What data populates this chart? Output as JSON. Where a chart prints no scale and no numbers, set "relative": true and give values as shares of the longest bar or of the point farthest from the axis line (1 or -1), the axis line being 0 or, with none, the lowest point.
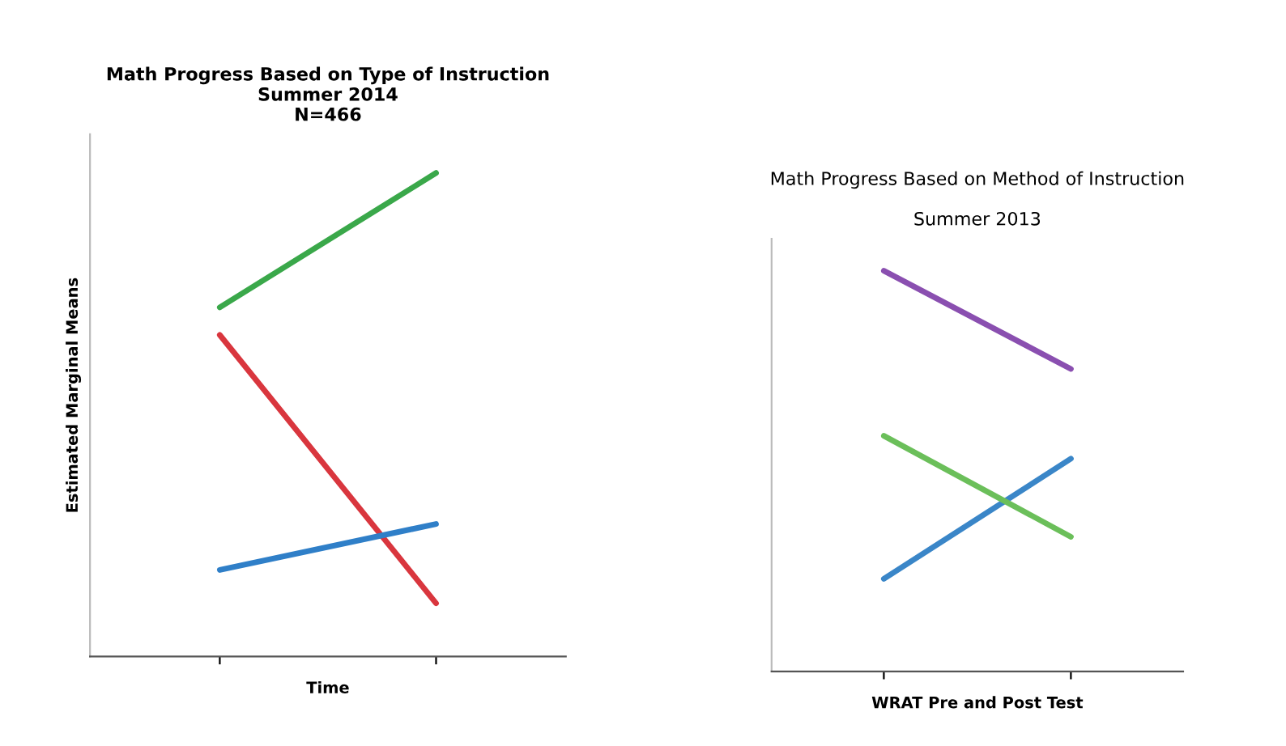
{
  "chart_data": [
    {
      "type": "line",
      "title": "Math Progress Based on Type of Instruction\nSummer 2014\nN=466",
      "xlabel": "Time",
      "ylabel": "Estimated Marginal Means",
      "relative": true,
      "categories": [
        null,
        null
      ],
      "grid": false,
      "series": [
        {
          "color": "#3aa84a",
          "values": [
            0.722,
            1
          ]
        },
        {
          "color": "#d9363e",
          "values": [
            0.665,
            0.11
          ]
        },
        {
          "color": "#2f7fc8",
          "values": [
            0.179,
            0.274
          ]
        }
      ]
    },
    {
      "type": "line",
      "title": "Math Progress Based on Method of Instruction",
      "subtitle": "Summer 2013",
      "xlabel": "WRAT Pre and Post Test",
      "relative": true,
      "categories": [
        null,
        null
      ],
      "grid": false,
      "series": [
        {
          "color": "#3a86c8",
          "values": [
            0.231,
            0.531
          ]
        },
        {
          "color": "#6bbf5a",
          "values": [
            0.588,
            0.336
          ]
        },
        {
          "color": "#8a4fb0",
          "values": [
            1,
            0.755
          ]
        }
      ]
    }
  ]
}
